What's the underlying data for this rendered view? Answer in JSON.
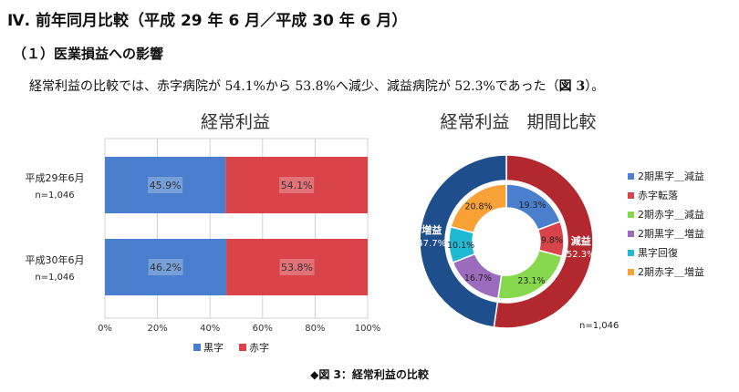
{
  "heading": "Ⅳ. 前年同月比較（平成 29 年 6 月／平成 30 年 6 月）",
  "subheading": "（１）医業損益への影響",
  "paragraph": {
    "text": "経常利益の比較では、赤字病院が 54.1%から 53.8%へ減少、減益病院が 52.3%であった（",
    "ref": "図 3",
    "end": "）。"
  },
  "caption": "◆図 3：経常利益の比較",
  "colors": {
    "blue": "#4a7fce",
    "red": "#d9434a",
    "green": "#86d94c",
    "purple": "#9b6bbd",
    "cyan": "#1fb9d3",
    "orange": "#f7a137",
    "darkblue": "#1f4e8c",
    "darkred": "#b3282e"
  },
  "chart_data": [
    {
      "type": "bar",
      "title": "経常利益",
      "stacked": true,
      "categories": [
        {
          "label": "平成29年6月",
          "n": "n=1,046"
        },
        {
          "label": "平成30年6月",
          "n": "n=1,046"
        }
      ],
      "series": [
        {
          "name": "黒字",
          "color": "#4a7fce",
          "values": [
            45.9,
            46.2
          ],
          "labels": [
            "45.9%",
            "46.2%"
          ]
        },
        {
          "name": "赤字",
          "color": "#d9434a",
          "values": [
            54.1,
            53.8
          ],
          "labels": [
            "54.1%",
            "53.8%"
          ]
        }
      ],
      "xlim": [
        0,
        100
      ],
      "xticks": [
        "0%",
        "20%",
        "40%",
        "60%",
        "80%",
        "100%"
      ],
      "grid": true,
      "legend": "bottom"
    },
    {
      "type": "pie",
      "title": "経常利益　期間比較",
      "note": "n=1,046",
      "inner": [
        {
          "name": "2期黒字＿減益",
          "value": 19.3,
          "label": "19.3%",
          "color": "#4a7fce"
        },
        {
          "name": "赤字転落",
          "value": 9.8,
          "label": "9.8%",
          "color": "#d9434a"
        },
        {
          "name": "2期赤字＿減益",
          "value": 23.1,
          "label": "23.1%",
          "color": "#86d94c"
        },
        {
          "name": "2期黒字＿増益",
          "value": 16.7,
          "label": "16.7%",
          "color": "#9b6bbd"
        },
        {
          "name": "黒字回復",
          "value": 10.1,
          "label": "10.1%",
          "color": "#1fb9d3"
        },
        {
          "name": "2期赤字＿増益",
          "value": 20.8,
          "label": "20.8%",
          "color": "#f7a137"
        }
      ],
      "outer": [
        {
          "name": "減益",
          "value": 52.3,
          "label": "52.3%",
          "color": "#b3282e"
        },
        {
          "name": "増益",
          "value": 47.7,
          "label": "47.7%",
          "color": "#1f4e8c"
        }
      ],
      "legend": "right"
    }
  ]
}
